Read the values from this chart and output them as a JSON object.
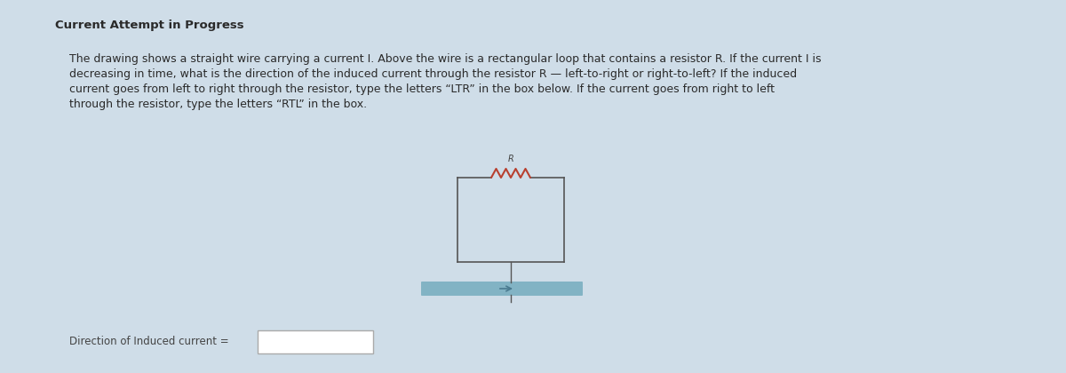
{
  "background_color": "#cfdde8",
  "title": "Current Attempt in Progress",
  "title_fontsize": 9.5,
  "body_text_line1": "The drawing shows a straight wire carrying a current I. Above the wire is a rectangular loop that contains a resistor R. If the current I is",
  "body_text_line2": "decreasing in time, what is the direction of the induced current through the resistor R — left-to-right or right-to-left? If the induced",
  "body_text_line3": "current goes from left to right through the resistor, type the letters “LTR” in the box below. If the current goes from right to left",
  "body_text_line4": "through the resistor, type the letters “RTL” in the box.",
  "body_fontsize": 9.0,
  "label_text": "Direction of Induced current =",
  "label_fontsize": 8.5,
  "rect_color": "#555555",
  "resistor_color": "#b84030",
  "wire_color": "#7aafc0",
  "input_box_color": "#ffffff"
}
